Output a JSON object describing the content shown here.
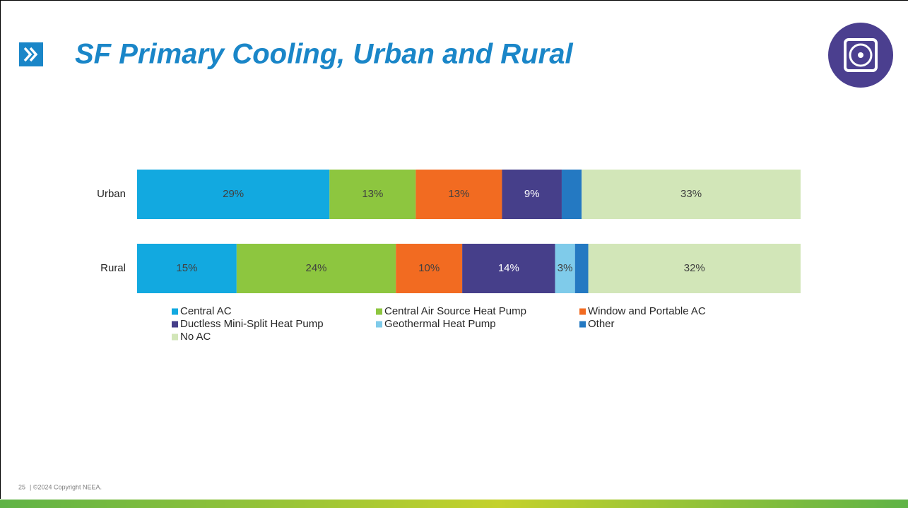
{
  "chart_data": {
    "type": "stacked_barh",
    "title": "SF Primary Cooling, Urban and Rural",
    "categories": [
      "Urban",
      "Rural"
    ],
    "series": [
      {
        "name": "Central AC",
        "color": "#12a9e0",
        "values": [
          29,
          15
        ],
        "value_labels": [
          "29%",
          "15%"
        ]
      },
      {
        "name": "Central Air Source Heat Pump",
        "color": "#8dc63f",
        "values": [
          13,
          24
        ],
        "value_labels": [
          "13%",
          "24%"
        ]
      },
      {
        "name": "Window and Portable AC",
        "color": "#f26b21",
        "values": [
          13,
          10
        ],
        "value_labels": [
          "13%",
          "10%"
        ]
      },
      {
        "name": "Ductless Mini-Split Heat Pump",
        "color": "#463f8a",
        "values": [
          9,
          14
        ],
        "value_labels": [
          "9%",
          "14%"
        ]
      },
      {
        "name": "Geothermal Heat Pump",
        "color": "#7fcbea",
        "values": [
          0,
          3
        ],
        "value_labels": [
          null,
          "3%"
        ]
      },
      {
        "name": "Other",
        "color": "#2479c2",
        "values": [
          3,
          2
        ],
        "value_labels": [
          null,
          null
        ]
      },
      {
        "name": "No AC",
        "color": "#d2e6b8",
        "values": [
          33,
          32
        ],
        "value_labels": [
          "33%",
          "32%"
        ]
      }
    ],
    "xlim": [
      0,
      100
    ],
    "legend": "bottom"
  },
  "footer": {
    "page": "25",
    "text": "| ©2024 Copyright NEEA."
  }
}
